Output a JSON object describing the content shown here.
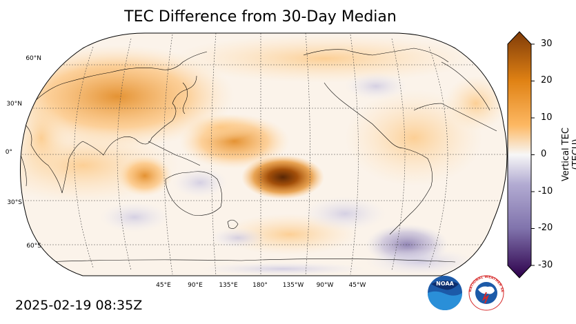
{
  "title": "TEC Difference from 30-Day Median",
  "timestamp": "2025-02-19 08:35Z",
  "map": {
    "projection": "Robinson",
    "central_longitude": 180,
    "graticule": "dashed",
    "lat_labels": [
      "60°N",
      "30°N",
      "0°",
      "30°S",
      "60°S"
    ],
    "lon_labels": [
      "45°E",
      "90°E",
      "135°E",
      "180°",
      "135°W",
      "90°W",
      "45°W"
    ]
  },
  "colorbar": {
    "label": "Vertical TEC (TECU)",
    "min": -30,
    "max": 30,
    "ticks": [
      "30",
      "20",
      "10",
      "0",
      "-10",
      "-20",
      "-30"
    ],
    "colors": {
      "max": "#7f3b08",
      "high": "#e08214",
      "mid_high": "#fdb863",
      "zero": "#f7f7f7",
      "mid_low": "#b2abd2",
      "low": "#8073ac",
      "min": "#2d004b"
    }
  },
  "logos": {
    "noaa": "NOAA",
    "nws": "NATIONAL WEATHER SERVICE"
  }
}
